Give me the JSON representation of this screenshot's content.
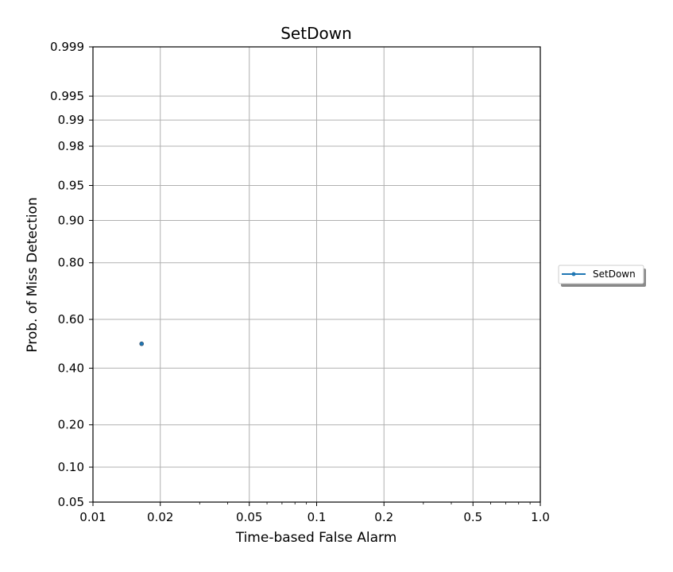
{
  "chart_data": {
    "type": "scatter",
    "title": "SetDown",
    "xlabel": "Time-based False Alarm",
    "ylabel": "Prob. of Miss Detection",
    "x_scale": "log",
    "y_scale": "normal-deviate",
    "xlim": [
      0.01,
      1.0
    ],
    "ylim": [
      0.05,
      0.999
    ],
    "x_ticks": [
      0.01,
      0.02,
      0.05,
      0.1,
      0.2,
      0.5,
      1.0
    ],
    "x_tick_labels": [
      "0.01",
      "0.02",
      "0.05",
      "0.1",
      "0.2",
      "0.5",
      "1.0"
    ],
    "y_ticks": [
      0.05,
      0.1,
      0.2,
      0.4,
      0.6,
      0.8,
      0.9,
      0.95,
      0.98,
      0.99,
      0.995,
      0.999
    ],
    "y_tick_labels": [
      "0.05",
      "0.10",
      "0.20",
      "0.40",
      "0.60",
      "0.80",
      "0.90",
      "0.95",
      "0.98",
      "0.99",
      "0.995",
      "0.999"
    ],
    "grid": true,
    "legend_position": "right, outside plot",
    "series": [
      {
        "name": "SetDown",
        "color": "#1f77b4",
        "points": [
          {
            "x": 0.0165,
            "y": 0.5
          }
        ]
      }
    ]
  }
}
